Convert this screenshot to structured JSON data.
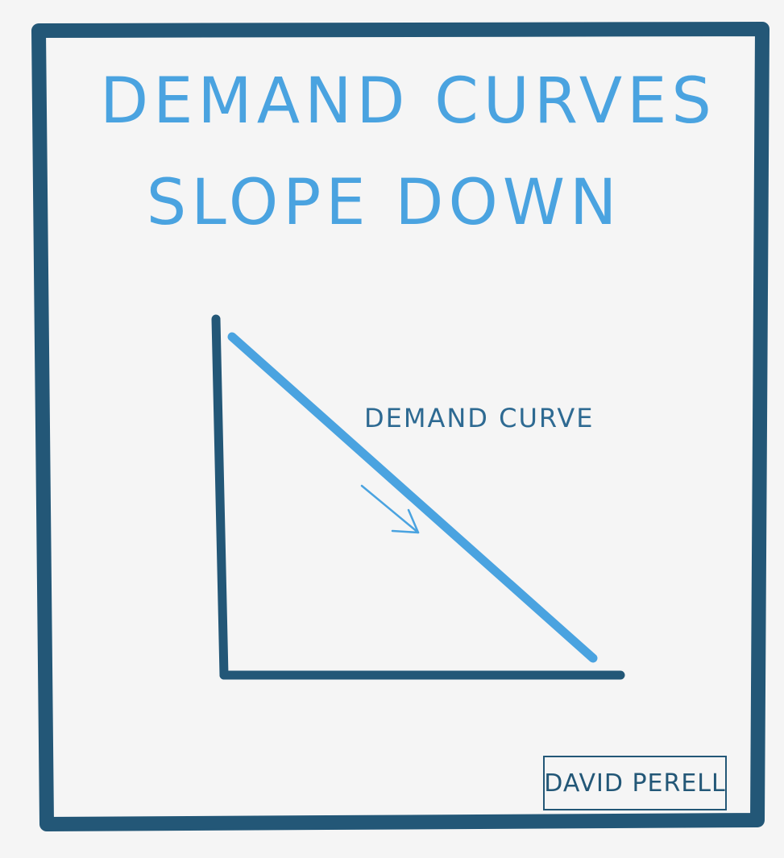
{
  "title": {
    "line1": "DEMAND CURVES",
    "line2": "SLOPE DOWN"
  },
  "diagram": {
    "curve_label": "DEMAND CURVE"
  },
  "signature": "DAVID PERELL",
  "colors": {
    "background": "#f5f5f5",
    "frame": "#235777",
    "title": "#4aa3e0",
    "curve": "#4aa3e0",
    "axes": "#235777",
    "label": "#2e6a92",
    "arrow": "#4aa3e0"
  }
}
